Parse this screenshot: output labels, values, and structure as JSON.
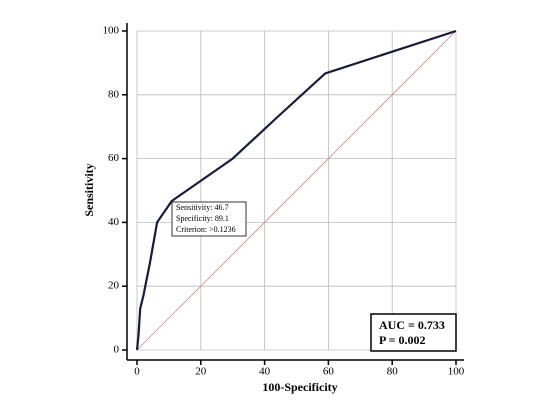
{
  "chart_data": {
    "type": "line",
    "xlabel": "100-Specificity",
    "ylabel": "Sensitivity",
    "xlim": [
      0,
      100
    ],
    "ylim": [
      0,
      100
    ],
    "xticks": [
      0,
      20,
      40,
      60,
      80,
      100
    ],
    "yticks": [
      0,
      20,
      40,
      60,
      80,
      100
    ],
    "grid": true,
    "series": [
      {
        "color": "#1a1a3a",
        "x": [
          0,
          0.5,
          1,
          2,
          4,
          6.3,
          10.9,
          30,
          44,
          59,
          100
        ],
        "values": [
          0,
          5,
          13,
          17,
          27,
          40,
          46.7,
          60,
          73,
          86.7,
          100
        ]
      },
      {
        "color": "#c98a8a",
        "x": [
          0,
          100
        ],
        "values": [
          0,
          100
        ]
      }
    ],
    "annotations": [
      "Sensitivity: 46.7",
      "Specificity: 89.1",
      "Criterion: >0.1236"
    ],
    "stats": [
      "AUC = 0.733",
      "P = 0.002"
    ]
  }
}
